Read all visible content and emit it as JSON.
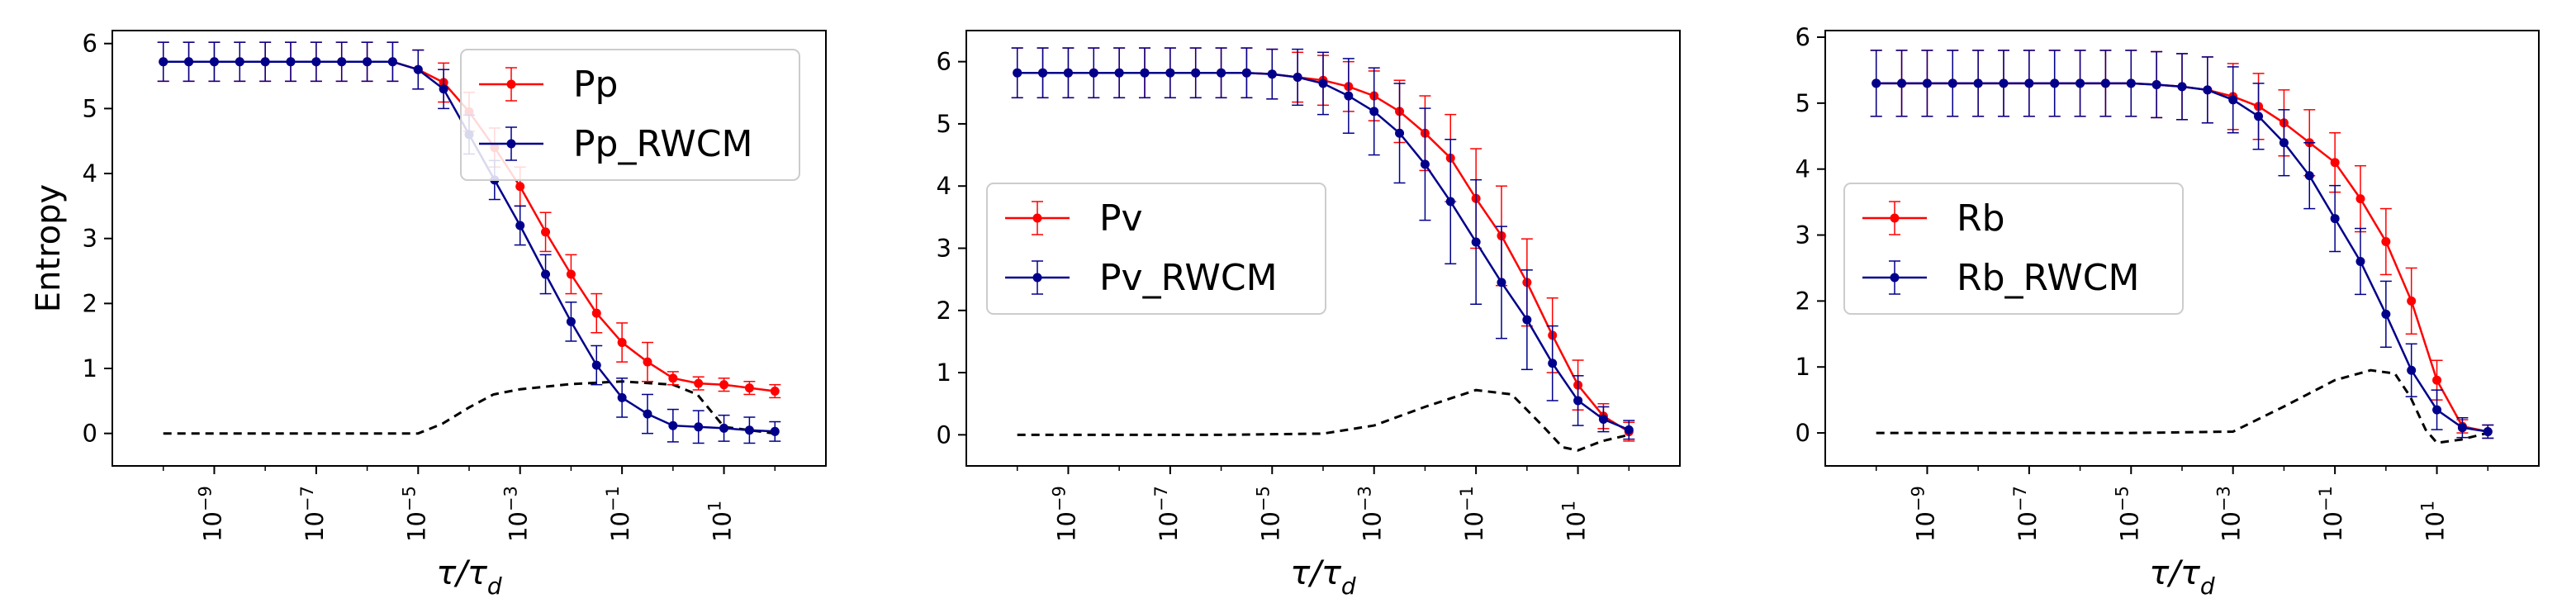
{
  "colors": {
    "red": "#ff0000",
    "navy": "#00008b",
    "dashed": "#000000"
  },
  "charts": [
    {
      "type": "line",
      "ylabel": "Entropy",
      "xlabel_base": "τ/τ",
      "xlabel_sub": "d",
      "xscale": "log",
      "xlim": [
        1e-11,
        1000.0
      ],
      "ylim": [
        -0.5,
        6.2
      ],
      "yticks": [
        "0",
        "1",
        "2",
        "3",
        "4",
        "5",
        "6"
      ],
      "xticks_exp": [
        "-9",
        "-7",
        "-5",
        "-3",
        "-1",
        "1"
      ],
      "legend_position": "top-right",
      "series": [
        {
          "name": "Pp",
          "color": "red",
          "x": [
            1e-10,
            3.16e-10,
            1e-09,
            3.16e-09,
            1e-08,
            3.16e-08,
            1e-07,
            3.16e-07,
            1e-06,
            3.16e-06,
            1e-05,
            3.16e-05,
            0.0001,
            0.000316,
            0.001,
            0.00316,
            0.01,
            0.0316,
            0.1,
            0.316,
            1,
            3.16,
            10,
            31.6,
            100
          ],
          "y": [
            5.72,
            5.72,
            5.72,
            5.72,
            5.72,
            5.72,
            5.72,
            5.72,
            5.72,
            5.72,
            5.6,
            5.4,
            4.95,
            4.4,
            3.8,
            3.1,
            2.45,
            1.85,
            1.4,
            1.1,
            0.85,
            0.77,
            0.75,
            0.7,
            0.65
          ],
          "err": [
            0.3,
            0.3,
            0.3,
            0.3,
            0.3,
            0.3,
            0.3,
            0.3,
            0.3,
            0.3,
            0.3,
            0.3,
            0.3,
            0.3,
            0.3,
            0.3,
            0.3,
            0.3,
            0.3,
            0.3,
            0.1,
            0.1,
            0.1,
            0.1,
            0.1
          ]
        },
        {
          "name": "Pp_RWCM",
          "color": "navy",
          "x": [
            1e-10,
            3.16e-10,
            1e-09,
            3.16e-09,
            1e-08,
            3.16e-08,
            1e-07,
            3.16e-07,
            1e-06,
            3.16e-06,
            1e-05,
            3.16e-05,
            0.0001,
            0.000316,
            0.001,
            0.00316,
            0.01,
            0.0316,
            0.1,
            0.316,
            1,
            3.16,
            10,
            31.6,
            100
          ],
          "y": [
            5.72,
            5.72,
            5.72,
            5.72,
            5.72,
            5.72,
            5.72,
            5.72,
            5.72,
            5.72,
            5.6,
            5.3,
            4.6,
            3.9,
            3.2,
            2.45,
            1.72,
            1.05,
            0.55,
            0.3,
            0.12,
            0.1,
            0.08,
            0.05,
            0.03
          ],
          "err": [
            0.3,
            0.3,
            0.3,
            0.3,
            0.3,
            0.3,
            0.3,
            0.3,
            0.3,
            0.3,
            0.3,
            0.3,
            0.3,
            0.3,
            0.3,
            0.3,
            0.3,
            0.3,
            0.3,
            0.3,
            0.25,
            0.25,
            0.2,
            0.2,
            0.15
          ]
        }
      ],
      "dashed": {
        "x": [
          1e-10,
          1e-08,
          1e-06,
          1e-05,
          3e-05,
          0.0001,
          0.0003,
          0.001,
          0.01,
          0.1,
          1,
          3,
          10,
          100
        ],
        "y": [
          0,
          0,
          0,
          0,
          0.15,
          0.4,
          0.6,
          0.68,
          0.76,
          0.8,
          0.75,
          0.6,
          0.1,
          0
        ]
      }
    },
    {
      "type": "line",
      "ylabel": "",
      "xlabel_base": "τ/τ",
      "xlabel_sub": "d",
      "xscale": "log",
      "xlim": [
        1e-11,
        1000.0
      ],
      "ylim": [
        -0.5,
        6.5
      ],
      "yticks": [
        "0",
        "1",
        "2",
        "3",
        "4",
        "5",
        "6"
      ],
      "xticks_exp": [
        "-9",
        "-7",
        "-5",
        "-3",
        "-1",
        "1"
      ],
      "legend_position": "center-left",
      "series": [
        {
          "name": "Pv",
          "color": "red",
          "x": [
            1e-10,
            3.16e-10,
            1e-09,
            3.16e-09,
            1e-08,
            3.16e-08,
            1e-07,
            3.16e-07,
            1e-06,
            3.16e-06,
            1e-05,
            3.16e-05,
            0.0001,
            0.000316,
            0.001,
            0.00316,
            0.01,
            0.0316,
            0.1,
            0.316,
            1,
            3.16,
            10,
            31.6,
            100
          ],
          "y": [
            5.82,
            5.82,
            5.82,
            5.82,
            5.82,
            5.82,
            5.82,
            5.82,
            5.82,
            5.82,
            5.8,
            5.75,
            5.7,
            5.6,
            5.45,
            5.2,
            4.85,
            4.45,
            3.8,
            3.2,
            2.45,
            1.6,
            0.8,
            0.3,
            0.05
          ],
          "err": [
            0.4,
            0.4,
            0.4,
            0.4,
            0.4,
            0.4,
            0.4,
            0.4,
            0.4,
            0.4,
            0.4,
            0.4,
            0.4,
            0.4,
            0.4,
            0.5,
            0.6,
            0.7,
            0.8,
            0.8,
            0.7,
            0.6,
            0.4,
            0.2,
            0.15
          ]
        },
        {
          "name": "Pv_RWCM",
          "color": "navy",
          "x": [
            1e-10,
            3.16e-10,
            1e-09,
            3.16e-09,
            1e-08,
            3.16e-08,
            1e-07,
            3.16e-07,
            1e-06,
            3.16e-06,
            1e-05,
            3.16e-05,
            0.0001,
            0.000316,
            0.001,
            0.00316,
            0.01,
            0.0316,
            0.1,
            0.316,
            1,
            3.16,
            10,
            31.6,
            100
          ],
          "y": [
            5.82,
            5.82,
            5.82,
            5.82,
            5.82,
            5.82,
            5.82,
            5.82,
            5.82,
            5.82,
            5.8,
            5.75,
            5.65,
            5.45,
            5.2,
            4.85,
            4.35,
            3.75,
            3.1,
            2.45,
            1.85,
            1.15,
            0.55,
            0.25,
            0.08
          ],
          "err": [
            0.4,
            0.4,
            0.4,
            0.4,
            0.4,
            0.4,
            0.4,
            0.4,
            0.4,
            0.4,
            0.4,
            0.45,
            0.5,
            0.6,
            0.7,
            0.8,
            0.9,
            1.0,
            1.0,
            0.9,
            0.8,
            0.6,
            0.4,
            0.2,
            0.15
          ]
        }
      ],
      "dashed": {
        "x": [
          1e-10,
          1e-06,
          0.0001,
          0.001,
          0.01,
          0.1,
          0.5,
          2,
          5,
          10,
          30,
          100
        ],
        "y": [
          0,
          0,
          0.02,
          0.15,
          0.45,
          0.72,
          0.65,
          0.15,
          -0.2,
          -0.25,
          -0.1,
          0
        ]
      }
    },
    {
      "type": "line",
      "ylabel": "",
      "xlabel_base": "τ/τ",
      "xlabel_sub": "d",
      "xscale": "log",
      "xlim": [
        1e-11,
        1000.0
      ],
      "ylim": [
        -0.5,
        6.1
      ],
      "yticks": [
        "0",
        "1",
        "2",
        "3",
        "4",
        "5",
        "6"
      ],
      "xticks_exp": [
        "-9",
        "-7",
        "-5",
        "-3",
        "-1",
        "1"
      ],
      "legend_position": "center-left",
      "series": [
        {
          "name": "Rb",
          "color": "red",
          "x": [
            1e-10,
            3.16e-10,
            1e-09,
            3.16e-09,
            1e-08,
            3.16e-08,
            1e-07,
            3.16e-07,
            1e-06,
            3.16e-06,
            1e-05,
            3.16e-05,
            0.0001,
            0.000316,
            0.001,
            0.00316,
            0.01,
            0.0316,
            0.1,
            0.316,
            1,
            3.16,
            10,
            31.6,
            100
          ],
          "y": [
            5.3,
            5.3,
            5.3,
            5.3,
            5.3,
            5.3,
            5.3,
            5.3,
            5.3,
            5.3,
            5.3,
            5.28,
            5.25,
            5.2,
            5.1,
            4.95,
            4.7,
            4.4,
            4.1,
            3.55,
            2.9,
            2.0,
            0.8,
            0.1,
            0.02
          ],
          "err": [
            0.5,
            0.5,
            0.5,
            0.5,
            0.5,
            0.5,
            0.5,
            0.5,
            0.5,
            0.5,
            0.5,
            0.5,
            0.5,
            0.5,
            0.5,
            0.5,
            0.5,
            0.5,
            0.45,
            0.5,
            0.5,
            0.5,
            0.3,
            0.1,
            0.1
          ]
        },
        {
          "name": "Rb_RWCM",
          "color": "navy",
          "x": [
            1e-10,
            3.16e-10,
            1e-09,
            3.16e-09,
            1e-08,
            3.16e-08,
            1e-07,
            3.16e-07,
            1e-06,
            3.16e-06,
            1e-05,
            3.16e-05,
            0.0001,
            0.000316,
            0.001,
            0.00316,
            0.01,
            0.0316,
            0.1,
            0.316,
            1,
            3.16,
            10,
            31.6,
            100
          ],
          "y": [
            5.3,
            5.3,
            5.3,
            5.3,
            5.3,
            5.3,
            5.3,
            5.3,
            5.3,
            5.3,
            5.3,
            5.28,
            5.25,
            5.2,
            5.05,
            4.8,
            4.4,
            3.9,
            3.25,
            2.6,
            1.8,
            0.95,
            0.35,
            0.08,
            0.02
          ],
          "err": [
            0.5,
            0.5,
            0.5,
            0.5,
            0.5,
            0.5,
            0.5,
            0.5,
            0.5,
            0.5,
            0.5,
            0.5,
            0.5,
            0.5,
            0.5,
            0.5,
            0.5,
            0.5,
            0.5,
            0.5,
            0.5,
            0.4,
            0.3,
            0.15,
            0.1
          ]
        }
      ],
      "dashed": {
        "x": [
          1e-10,
          1e-05,
          0.001,
          0.01,
          0.1,
          0.5,
          1.5,
          3,
          6,
          10,
          30,
          100
        ],
        "y": [
          0,
          0,
          0.02,
          0.4,
          0.8,
          0.95,
          0.9,
          0.55,
          0.05,
          -0.15,
          -0.1,
          0
        ]
      }
    }
  ]
}
